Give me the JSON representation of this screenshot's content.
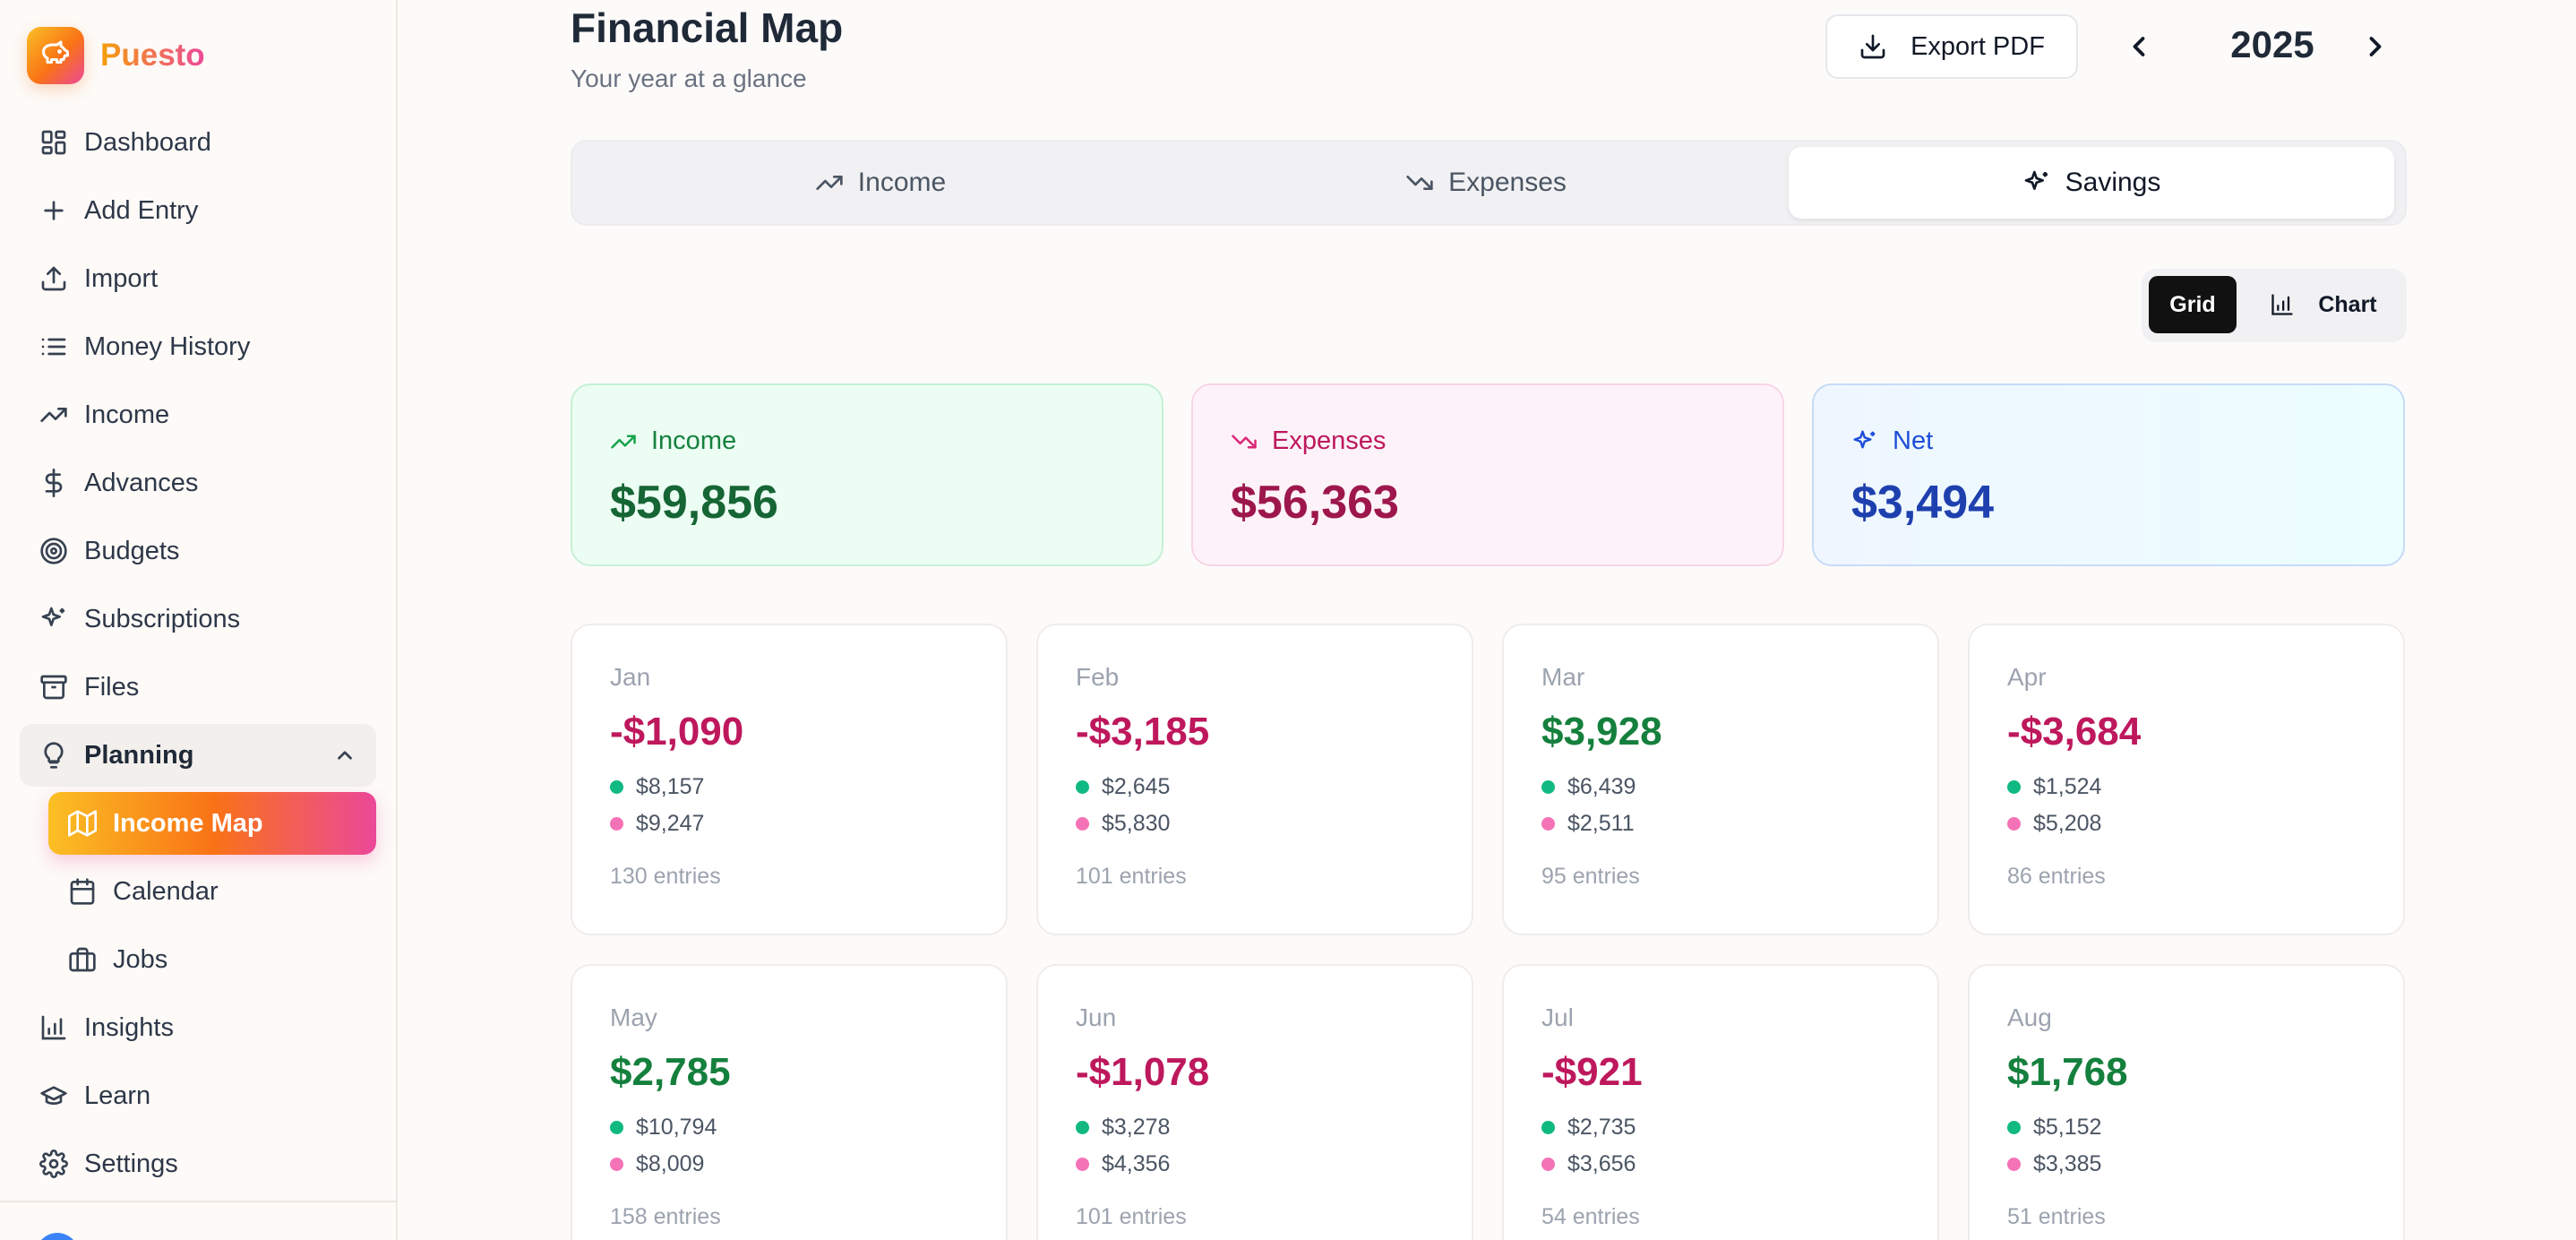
{
  "app": {
    "name": "Puesto"
  },
  "sidebar": {
    "items": [
      {
        "label": "Dashboard",
        "icon": "dashboard-icon"
      },
      {
        "label": "Add Entry",
        "icon": "plus-icon"
      },
      {
        "label": "Import",
        "icon": "upload-icon"
      },
      {
        "label": "Money History",
        "icon": "list-icon"
      },
      {
        "label": "Income",
        "icon": "trending-up-icon"
      },
      {
        "label": "Advances",
        "icon": "dollar-icon"
      },
      {
        "label": "Budgets",
        "icon": "target-icon"
      },
      {
        "label": "Subscriptions",
        "icon": "sparkles-icon"
      },
      {
        "label": "Files",
        "icon": "archive-icon"
      }
    ],
    "planning": {
      "label": "Planning",
      "icon": "lightbulb-icon",
      "children": [
        {
          "label": "Income Map",
          "icon": "map-icon",
          "active": true
        },
        {
          "label": "Calendar",
          "icon": "calendar-icon"
        },
        {
          "label": "Jobs",
          "icon": "briefcase-icon"
        }
      ]
    },
    "bottom_items": [
      {
        "label": "Insights",
        "icon": "bar-chart-icon"
      },
      {
        "label": "Learn",
        "icon": "graduation-cap-icon"
      },
      {
        "label": "Settings",
        "icon": "gear-icon"
      }
    ]
  },
  "header": {
    "title": "Financial Map",
    "subtitle": "Your year at a glance",
    "export_label": "Export PDF",
    "year": "2025"
  },
  "tabs": [
    {
      "label": "Income",
      "active": false
    },
    {
      "label": "Expenses",
      "active": false
    },
    {
      "label": "Savings",
      "active": true
    }
  ],
  "view_toggle": {
    "grid_label": "Grid",
    "chart_label": "Chart",
    "selected": "Grid"
  },
  "summary": {
    "income": {
      "label": "Income",
      "value": "$59,856"
    },
    "expenses": {
      "label": "Expenses",
      "value": "$56,363"
    },
    "net": {
      "label": "Net",
      "value": "$3,494"
    }
  },
  "months": [
    {
      "name": "Jan",
      "net": "-$1,090",
      "income": "$8,157",
      "expenses": "$9,247",
      "entries": "130 entries",
      "sign": "neg"
    },
    {
      "name": "Feb",
      "net": "-$3,185",
      "income": "$2,645",
      "expenses": "$5,830",
      "entries": "101 entries",
      "sign": "neg"
    },
    {
      "name": "Mar",
      "net": "$3,928",
      "income": "$6,439",
      "expenses": "$2,511",
      "entries": "95 entries",
      "sign": "pos"
    },
    {
      "name": "Apr",
      "net": "-$3,684",
      "income": "$1,524",
      "expenses": "$5,208",
      "entries": "86 entries",
      "sign": "neg"
    },
    {
      "name": "May",
      "net": "$2,785",
      "income": "$10,794",
      "expenses": "$8,009",
      "entries": "158 entries",
      "sign": "pos"
    },
    {
      "name": "Jun",
      "net": "-$1,078",
      "income": "$3,278",
      "expenses": "$4,356",
      "entries": "101 entries",
      "sign": "neg"
    },
    {
      "name": "Jul",
      "net": "-$921",
      "income": "$2,735",
      "expenses": "$3,656",
      "entries": "54 entries",
      "sign": "neg"
    },
    {
      "name": "Aug",
      "net": "$1,768",
      "income": "$5,152",
      "expenses": "$3,385",
      "entries": "51 entries",
      "sign": "pos"
    }
  ],
  "colors": {
    "accent_gradient": [
      "#fbbf24",
      "#f97316",
      "#ec4899"
    ],
    "positive": "#15803d",
    "negative": "#be185d",
    "income_dot": "#10b981",
    "expense_dot": "#f472b6"
  }
}
